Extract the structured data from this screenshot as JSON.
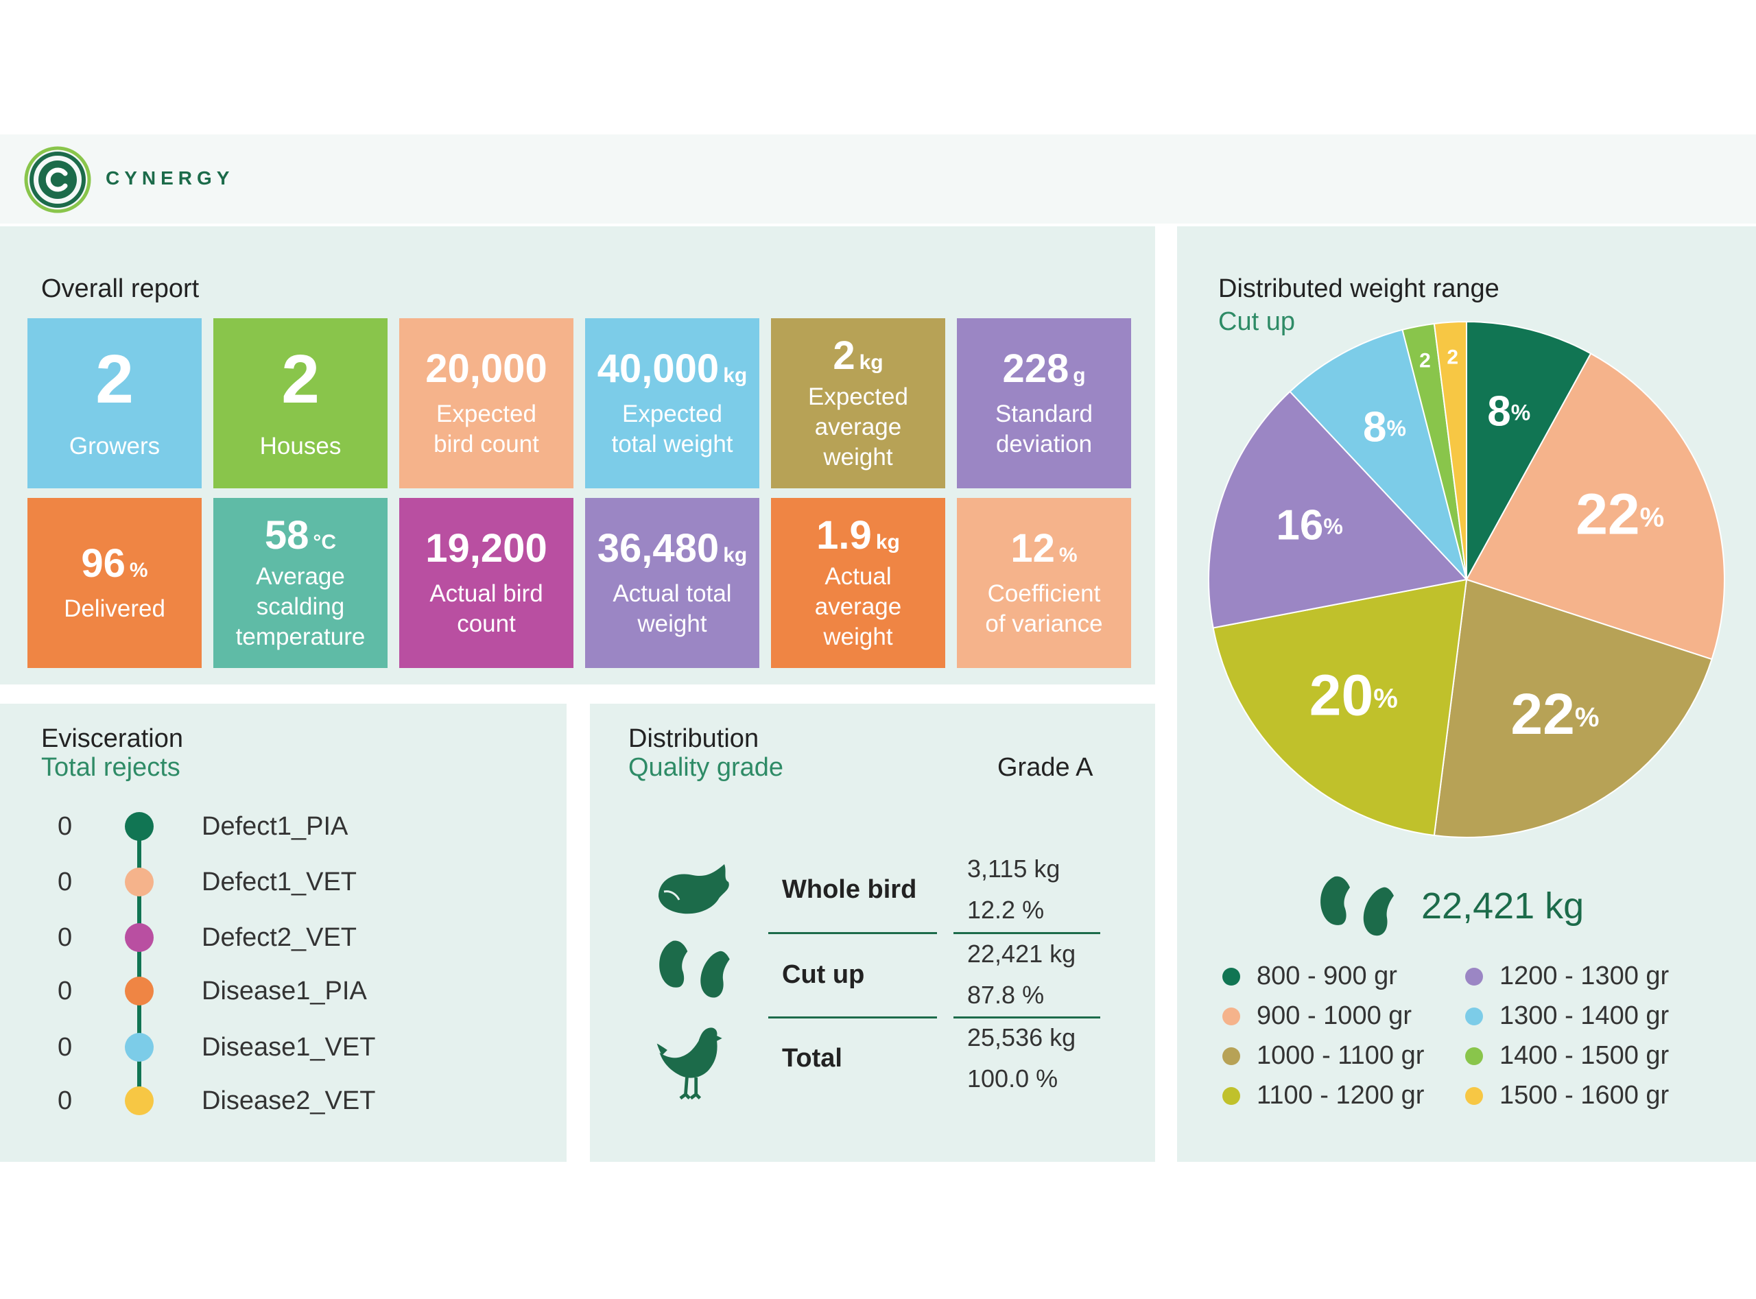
{
  "brand": {
    "name": "CYNERGY",
    "color": "#1c6b4a"
  },
  "overall": {
    "title": "Overall report",
    "tiles": [
      {
        "value": "2",
        "unit": "",
        "label": "Growers",
        "color": "#7ccce8"
      },
      {
        "value": "2",
        "unit": "",
        "label": "Houses",
        "color": "#89c54b"
      },
      {
        "value": "20,000",
        "unit": "",
        "label": "Expected bird count",
        "color": "#f5b38b"
      },
      {
        "value": "40,000",
        "unit": "kg",
        "label": "Expected total weight",
        "color": "#7ccce8"
      },
      {
        "value": "2",
        "unit": "kg",
        "label": "Expected average weight",
        "color": "#b7a256"
      },
      {
        "value": "228",
        "unit": "g",
        "label": "Standard deviation",
        "color": "#9b86c4"
      },
      {
        "value": "96",
        "unit": "%",
        "label": "Delivered",
        "color": "#ef8544"
      },
      {
        "value": "58",
        "unit": "°C",
        "label": "Average scalding temperature",
        "color": "#5fbba6"
      },
      {
        "value": "19,200",
        "unit": "",
        "label": "Actual bird count",
        "color": "#b94fa1"
      },
      {
        "value": "36,480",
        "unit": "kg",
        "label": "Actual total weight",
        "color": "#9b86c4"
      },
      {
        "value": "1.9",
        "unit": "kg",
        "label": "Actual average weight",
        "color": "#ef8544"
      },
      {
        "value": "12",
        "unit": "%",
        "label": "Coefficient of variance",
        "color": "#f5b38b"
      }
    ]
  },
  "evisceration": {
    "title": "Evisceration",
    "subtitle": "Total rejects",
    "items": [
      {
        "count": "0",
        "name": "Defect1_PIA",
        "color": "#117553"
      },
      {
        "count": "0",
        "name": "Defect1_VET",
        "color": "#f5b38b"
      },
      {
        "count": "0",
        "name": "Defect2_VET",
        "color": "#b94fa1"
      },
      {
        "count": "0",
        "name": "Disease1_PIA",
        "color": "#ef8544"
      },
      {
        "count": "0",
        "name": "Disease1_VET",
        "color": "#7ccce8"
      },
      {
        "count": "0",
        "name": "Disease2_VET",
        "color": "#f7c744"
      }
    ]
  },
  "distribution": {
    "title": "Distribution",
    "subtitle": "Quality grade",
    "grade": "Grade A",
    "rows": [
      {
        "icon": "whole-bird-icon",
        "name": "Whole bird",
        "kg": "3,115 kg",
        "pct": "12.2 %"
      },
      {
        "icon": "cut-up-icon",
        "name": "Cut up",
        "kg": "22,421 kg",
        "pct": "87.8 %"
      },
      {
        "icon": "chicken-icon",
        "name": "Total",
        "kg": "25,536 kg",
        "pct": "100.0 %"
      }
    ]
  },
  "weight_range": {
    "title": "Distributed weight range",
    "subtitle": "Cut up",
    "total": "22,421 kg",
    "total_icon": "drumsticks-icon"
  },
  "chart_data": {
    "type": "pie",
    "title": "Distributed weight range",
    "categories": [
      "800 - 900 gr",
      "900 - 1000 gr",
      "1000 - 1100 gr",
      "1100 - 1200 gr",
      "1200 - 1300 gr",
      "1300 - 1400 gr",
      "1400 - 1500 gr",
      "1500 - 1600 gr"
    ],
    "values": [
      8,
      22,
      22,
      20,
      16,
      8,
      2,
      2
    ],
    "colors": [
      "#117553",
      "#f5b38b",
      "#b7a256",
      "#c0c12b",
      "#9b86c4",
      "#7ccce8",
      "#89c54b",
      "#f7c744"
    ],
    "unit": "%",
    "legend": "bottom"
  }
}
